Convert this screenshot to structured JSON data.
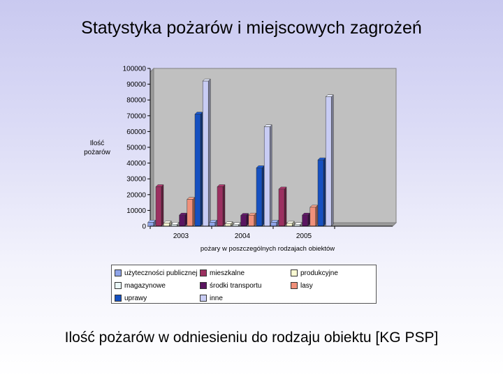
{
  "slide": {
    "title": "Statystyka pożarów i miejscowych zagrożeń",
    "caption": "Ilość pożarów w odniesieniu do rodzaju obiektu [KG PSP]"
  },
  "chart_data": {
    "type": "bar",
    "ylabel": "Ilość\npożarów",
    "xlabel": "pożary w poszczególnych rodzajach obiektów",
    "ylim": [
      0,
      100000
    ],
    "yticks": [
      0,
      10000,
      20000,
      30000,
      40000,
      50000,
      60000,
      70000,
      80000,
      90000,
      100000
    ],
    "grid": false,
    "legend_position": "bottom",
    "categories": [
      "2003",
      "2004",
      "2005",
      ""
    ],
    "series": [
      {
        "name": "użyteczności publicznej",
        "color": "#8fa4e8",
        "values": [
          2500,
          2500,
          2500,
          0
        ]
      },
      {
        "name": "mieszkalne",
        "color": "#9b3060",
        "values": [
          25000,
          25000,
          23500,
          0
        ]
      },
      {
        "name": "produkcyjne",
        "color": "#fafad2",
        "values": [
          2000,
          1500,
          1800,
          0
        ]
      },
      {
        "name": "magazynowe",
        "color": "#eaf7f7",
        "values": [
          1200,
          1000,
          1000,
          0
        ]
      },
      {
        "name": "środki transportu",
        "color": "#5a1560",
        "values": [
          7000,
          6800,
          7000,
          0
        ]
      },
      {
        "name": "lasy",
        "color": "#f0907a",
        "values": [
          17000,
          7000,
          12000,
          0
        ]
      },
      {
        "name": "uprawy",
        "color": "#1550c0",
        "values": [
          71000,
          37000,
          42000,
          0
        ]
      },
      {
        "name": "inne",
        "color": "#c8ccf4",
        "values": [
          92000,
          63000,
          82000,
          0
        ]
      }
    ]
  }
}
